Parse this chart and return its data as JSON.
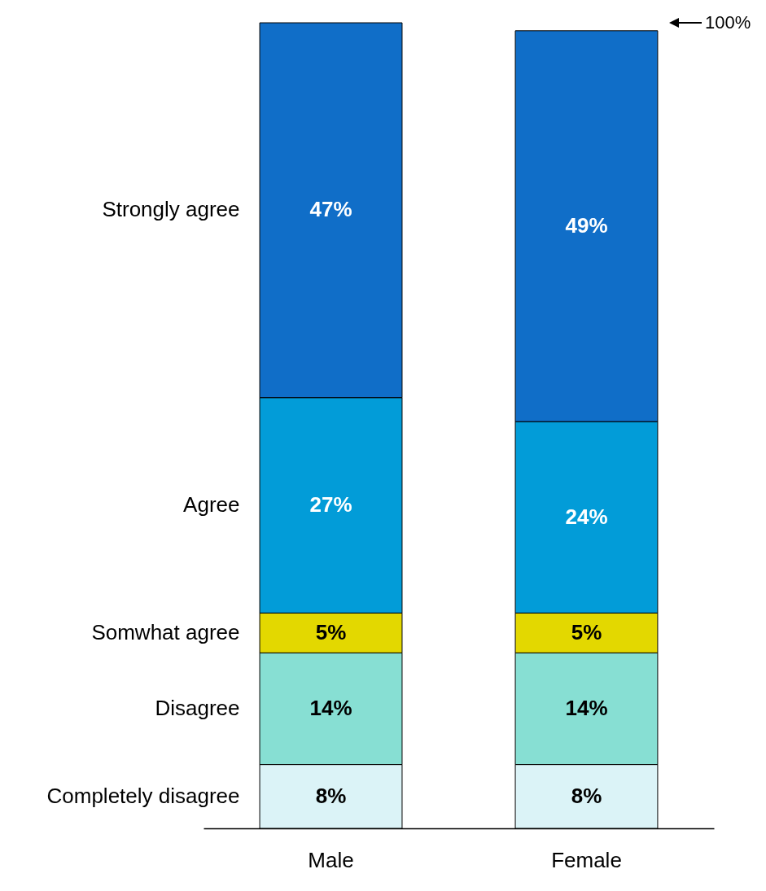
{
  "chart_data": {
    "type": "bar",
    "stacked": true,
    "categories": [
      "Male",
      "Female"
    ],
    "series": [
      {
        "name": "Completely disagree",
        "color": "#dbf3f7",
        "values": [
          8,
          8
        ],
        "value_labels": [
          "8%",
          "8%"
        ]
      },
      {
        "name": "Disagree",
        "color": "#87dfd3",
        "values": [
          14,
          14
        ],
        "value_labels": [
          "14%",
          "14%"
        ]
      },
      {
        "name": "Somwhat agree",
        "color": "#e3d800",
        "values": [
          5,
          5
        ],
        "value_labels": [
          "5%",
          "5%"
        ]
      },
      {
        "name": "Agree",
        "color": "#029cd8",
        "values": [
          27,
          24
        ],
        "value_labels": [
          "27%",
          "24%"
        ]
      },
      {
        "name": "Strongly agree",
        "color": "#106ec8",
        "values": [
          47,
          49
        ],
        "value_labels": [
          "47%",
          "49%"
        ]
      }
    ],
    "annotations": [
      "100%"
    ]
  }
}
